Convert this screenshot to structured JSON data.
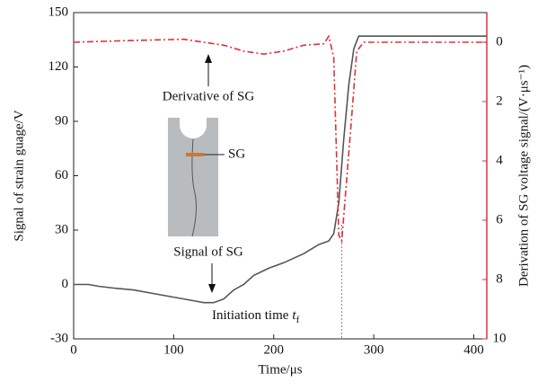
{
  "chart_data": {
    "type": "line",
    "xlabel": "Time/μs",
    "ylabel": "Signal of strain guage/V",
    "y2label": "Derivation of SG voltage signal/(V·μs⁻¹)",
    "xlim": [
      0,
      413
    ],
    "xticks": [
      0,
      100,
      200,
      300,
      400
    ],
    "ylim": [
      -30,
      150
    ],
    "yticks": [
      -30,
      0,
      30,
      60,
      90,
      120,
      150
    ],
    "y2lim": [
      10,
      -1
    ],
    "y2ticks": [
      0,
      2,
      4,
      6,
      8,
      10
    ],
    "series": [
      {
        "name": "Signal of SG",
        "color": "#555555",
        "axis": "y",
        "x": [
          0,
          15,
          25,
          40,
          60,
          80,
          100,
          120,
          130,
          140,
          150,
          160,
          170,
          180,
          195,
          210,
          230,
          245,
          255,
          260,
          265,
          270,
          275,
          280,
          285,
          290,
          413
        ],
        "values": [
          0,
          0,
          -1,
          -2,
          -3,
          -5,
          -7,
          -9,
          -10,
          -10,
          -8,
          -3,
          0,
          5,
          9,
          12,
          17,
          22,
          24,
          28,
          45,
          80,
          110,
          130,
          137,
          137,
          137
        ]
      },
      {
        "name": "Derivative of SG",
        "color": "#e0303a",
        "axis": "y2",
        "x": [
          0,
          50,
          110,
          130,
          150,
          170,
          190,
          210,
          230,
          250,
          255,
          260,
          265,
          268,
          272,
          278,
          283,
          290,
          413
        ],
        "values": [
          0,
          -0.05,
          -0.1,
          0,
          0.1,
          0.3,
          0.4,
          0.3,
          0.1,
          0.05,
          -0.2,
          0.5,
          6.5,
          6.7,
          5,
          2.5,
          0.3,
          0,
          0
        ]
      }
    ],
    "annotations": {
      "sg": "SG",
      "initiation": "Initiation time",
      "t": "t",
      "f": "f",
      "initiation_x": 268
    }
  }
}
